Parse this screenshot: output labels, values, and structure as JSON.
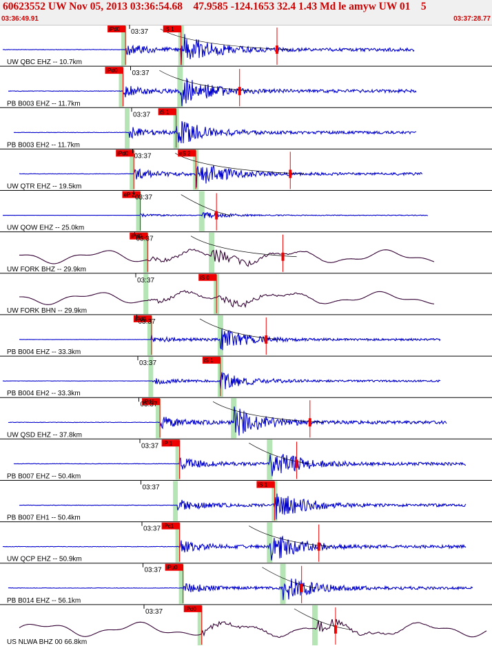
{
  "header": {
    "title": "60623552 UW Nov 05, 2013 03:36:54.68    47.9585 -124.1653 32.4 1.43 Md le amyw UW 01    5",
    "start_time": "03:36:49.91",
    "end_time": "03:37:28.77"
  },
  "colors": {
    "background": "#ffffff",
    "title_text": "#cc0000",
    "trace_short_period": "#0000cc",
    "trace_broadband": "#330033",
    "pick_flag": "#ee0000",
    "sp_window": "#a8e0a8",
    "divider": "#000000"
  },
  "traces": [
    {
      "label": "UW QBC EHZ -- 10.7km",
      "tick": "03:37",
      "p_pick": "iPd0",
      "s_pick": "iS 1",
      "type": "sp",
      "p": 0.255,
      "s": 0.368,
      "end": 0.843,
      "amp": 0.9,
      "coda": true,
      "mark": 0.563
    },
    {
      "label": "PB B003 EHZ -- 11.7km",
      "tick": "03:37",
      "p_pick": "iPd0",
      "s_pick": "",
      "type": "sp",
      "p": 0.25,
      "s": 0.366,
      "end": 0.846,
      "amp": 0.85,
      "coda": true,
      "mark": 0.487
    },
    {
      "label": "PB B003 EH2 -- 11.7km",
      "tick": "03:37",
      "p_pick": "",
      "s_pick": "iS 1",
      "type": "sp",
      "p": 0.262,
      "s": 0.358,
      "end": 0.846,
      "amp": 0.75,
      "coda": false,
      "mark": null
    },
    {
      "label": "UW QTR EHZ -- 19.5km",
      "tick": "03:37",
      "p_pick": "iPd0",
      "s_pick": "eS 2",
      "type": "sp",
      "p": 0.272,
      "s": 0.398,
      "end": 0.859,
      "amp": 0.75,
      "coda": true,
      "mark": 0.59
    },
    {
      "label": "UW QOW EHZ -- 25.0km",
      "tick": "03:37",
      "p_pick": "eP 2",
      "s_pick": "",
      "type": "sp",
      "p": 0.285,
      "s": 0.41,
      "end": 0.871,
      "amp": 0.2,
      "coda": true,
      "mark": 0.44
    },
    {
      "label": "UW FORK BHZ -- 29.9km",
      "tick": "03:37",
      "p_pick": "iPd0",
      "s_pick": "",
      "type": "bb",
      "p": 0.3,
      "s": 0.43,
      "end": 0.884,
      "amp": 0.75,
      "coda": true,
      "mark": 0.575
    },
    {
      "label": "UW FORK BHN -- 29.9km",
      "tick": "03:37",
      "p_pick": "",
      "s_pick": "iS 0",
      "type": "bb",
      "p": 0.3,
      "s": 0.44,
      "end": 0.884,
      "amp": 0.7,
      "coda": false,
      "mark": null
    },
    {
      "label": "PB B004 EHZ -- 33.3km",
      "tick": "03:37",
      "p_pick": "iPd0",
      "s_pick": "",
      "type": "sp",
      "p": 0.308,
      "s": 0.448,
      "end": 0.895,
      "amp": 0.6,
      "coda": true,
      "mark": 0.541
    },
    {
      "label": "PB B004 EH2 -- 33.3km",
      "tick": "03:37",
      "p_pick": "",
      "s_pick": "iS 1",
      "type": "sp",
      "p": 0.31,
      "s": 0.448,
      "end": 0.895,
      "amp": 0.5,
      "coda": false,
      "mark": null
    },
    {
      "label": "UW QSD EHZ -- 37.8km",
      "tick": "03:37",
      "p_pick": "iPd1",
      "s_pick": "",
      "type": "sp",
      "p": 0.325,
      "s": 0.475,
      "end": 0.908,
      "amp": 0.85,
      "coda": true,
      "mark": 0.63
    },
    {
      "label": "PB B007 EHZ -- 50.4km",
      "tick": "03:37",
      "p_pick": "iP 1",
      "s_pick": "",
      "type": "sp",
      "p": 0.365,
      "s": 0.548,
      "end": 0.948,
      "amp": 0.85,
      "coda": true,
      "mark": 0.603
    },
    {
      "label": "PB B007 EH1 -- 50.4km",
      "tick": "03:37",
      "p_pick": "",
      "s_pick": "iS 1",
      "type": "sp",
      "p": 0.36,
      "s": 0.558,
      "end": 0.948,
      "amp": 0.8,
      "coda": false,
      "mark": null
    },
    {
      "label": "UW QCP EHZ -- 50.9km",
      "tick": "03:37",
      "p_pick": "iPc1",
      "s_pick": "",
      "type": "sp",
      "p": 0.365,
      "s": 0.548,
      "end": 0.948,
      "amp": 0.85,
      "coda": true,
      "mark": 0.648
    },
    {
      "label": "PB B014 EHZ -- 56.1km",
      "tick": "03:37",
      "p_pick": "iPu0",
      "s_pick": "",
      "type": "sp",
      "p": 0.372,
      "s": 0.575,
      "end": 0.962,
      "amp": 0.75,
      "coda": true,
      "mark": 0.613
    },
    {
      "label": "US NLWA BHZ 00 66.8km",
      "tick": "03:37",
      "p_pick": "iPd0",
      "s_pick": "",
      "type": "bb",
      "p": 0.41,
      "s": 0.64,
      "end": 0.99,
      "amp": 0.8,
      "coda": true,
      "mark": 0.682
    }
  ]
}
